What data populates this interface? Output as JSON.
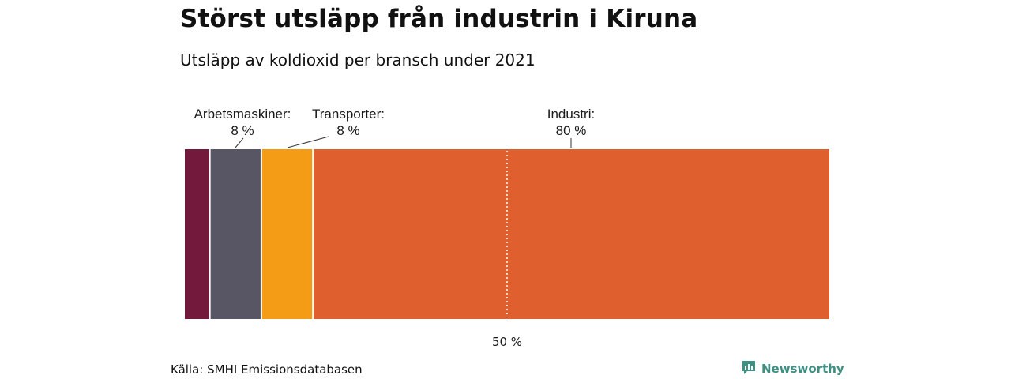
{
  "title": "Störst utsläpp från industrin i Kiruna",
  "subtitle": "Utsläpp av koldioxid per bransch under 2021",
  "source": "Källa: SMHI Emissionsdatabasen",
  "brand": {
    "name": "Newsworthy",
    "icon": "newsworthy-logo-icon",
    "color": "#3f8f83"
  },
  "chart_data": {
    "type": "bar",
    "orientation": "horizontal-stacked",
    "unit": "%",
    "xlim": [
      0,
      100
    ],
    "segments": [
      {
        "name": "",
        "value": 4,
        "color": "#731a3c",
        "label": "",
        "value_label": ""
      },
      {
        "name": "Arbetsmaskiner",
        "value": 8,
        "color": "#585665",
        "label": "Arbetsmaskiner:",
        "value_label": "8 %"
      },
      {
        "name": "Transporter",
        "value": 8,
        "color": "#f59c16",
        "label": "Transporter:",
        "value_label": "8 %"
      },
      {
        "name": "Industri",
        "value": 80,
        "color": "#e05f2e",
        "label": "Industri:",
        "value_label": "80 %"
      }
    ],
    "reference_line": {
      "value": 50,
      "label": "50 %"
    }
  }
}
